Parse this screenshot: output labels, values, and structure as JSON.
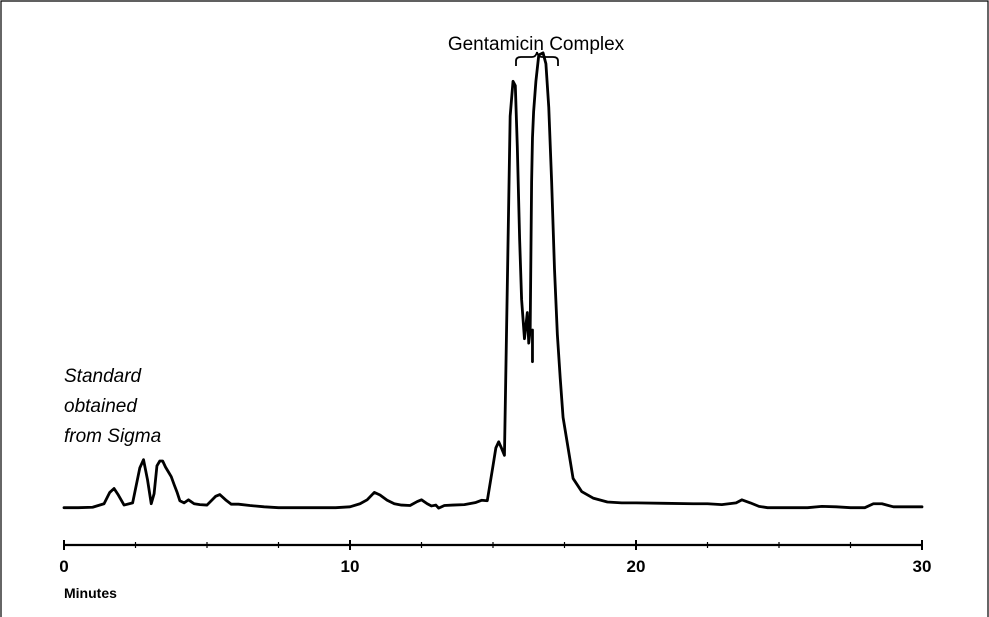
{
  "chart_data": {
    "type": "line",
    "title": "",
    "xlabel": "Minutes",
    "ylabel": "",
    "xlim": [
      0,
      30
    ],
    "ylim": [
      0,
      100
    ],
    "x_ticks": [
      0,
      10,
      20,
      30
    ],
    "grid": false,
    "annotations": {
      "sample_label": [
        "Standard",
        "obtained",
        "from Sigma"
      ],
      "peak_label": "Gentamicin Complex"
    },
    "series": [
      {
        "x": [
          0,
          0.5,
          1.0,
          1.4,
          1.6,
          1.75,
          1.9,
          2.1,
          2.4,
          2.65,
          2.78,
          2.92,
          3.05,
          3.15,
          3.25,
          3.35,
          3.45,
          3.55,
          3.65,
          3.75,
          3.85,
          3.95,
          4.05,
          4.2,
          4.35,
          4.55,
          4.75,
          5.0,
          5.3,
          5.45,
          5.65,
          5.85,
          6.1,
          6.5,
          7.0,
          7.5,
          8.0,
          8.5,
          9.0,
          9.5,
          10.0,
          10.35,
          10.6,
          10.85,
          11.05,
          11.3,
          11.55,
          11.8,
          12.1,
          12.35,
          12.5,
          12.7,
          12.85,
          13.0,
          13.1,
          13.3,
          13.6,
          14.0,
          14.4,
          14.6,
          14.8,
          15.0,
          15.1,
          15.2,
          15.3,
          15.4,
          15.5,
          15.6,
          15.7,
          15.78,
          15.85,
          15.93,
          16.0,
          16.1,
          16.2,
          16.25,
          16.3,
          16.35,
          16.38,
          16.42,
          16.5,
          16.6,
          16.75,
          16.85,
          16.95,
          17.05,
          17.15,
          17.25,
          17.35,
          17.45,
          17.6,
          17.8,
          18.1,
          18.5,
          19.0,
          19.5,
          20.0,
          21.0,
          22.0,
          22.5,
          23.0,
          23.5,
          23.7,
          24.0,
          24.3,
          24.6,
          25.0,
          25.5,
          26.0,
          26.5,
          27.0,
          27.5,
          28.0,
          28.3,
          28.6,
          29.0,
          29.5,
          30.0
        ],
        "values": [
          0.3,
          0.3,
          0.4,
          1.2,
          3.8,
          4.7,
          3.2,
          0.9,
          1.4,
          9.4,
          11.3,
          6.7,
          1.2,
          3.5,
          9.9,
          11.0,
          11.0,
          9.6,
          8.5,
          7.4,
          5.6,
          3.9,
          1.9,
          1.4,
          2.1,
          1.2,
          1.0,
          0.9,
          2.9,
          3.3,
          2.1,
          1.1,
          1.1,
          0.8,
          0.5,
          0.3,
          0.3,
          0.3,
          0.3,
          0.3,
          0.5,
          1.2,
          2.1,
          3.8,
          3.2,
          2.0,
          1.2,
          0.9,
          0.8,
          1.7,
          2.1,
          1.2,
          0.7,
          0.9,
          0.2,
          0.8,
          0.9,
          1.0,
          1.5,
          2.0,
          1.9,
          9.9,
          14.0,
          15.4,
          13.9,
          12.3,
          51.0,
          90.0,
          98.0,
          97.0,
          83.0,
          62.0,
          48.0,
          39.0,
          45.0,
          38.0,
          41.0,
          75.0,
          85.0,
          91.0,
          98.0,
          104.0,
          104.5,
          102.0,
          92.0,
          75.0,
          55.0,
          40.0,
          30.0,
          21.0,
          15.0,
          7.0,
          4.0,
          2.5,
          1.6,
          1.4,
          1.4,
          1.3,
          1.2,
          1.2,
          1.0,
          1.4,
          2.1,
          1.4,
          0.6,
          0.3,
          0.3,
          0.3,
          0.3,
          0.6,
          0.5,
          0.3,
          0.3,
          1.2,
          1.2,
          0.5,
          0.5,
          0.5
        ]
      }
    ]
  }
}
